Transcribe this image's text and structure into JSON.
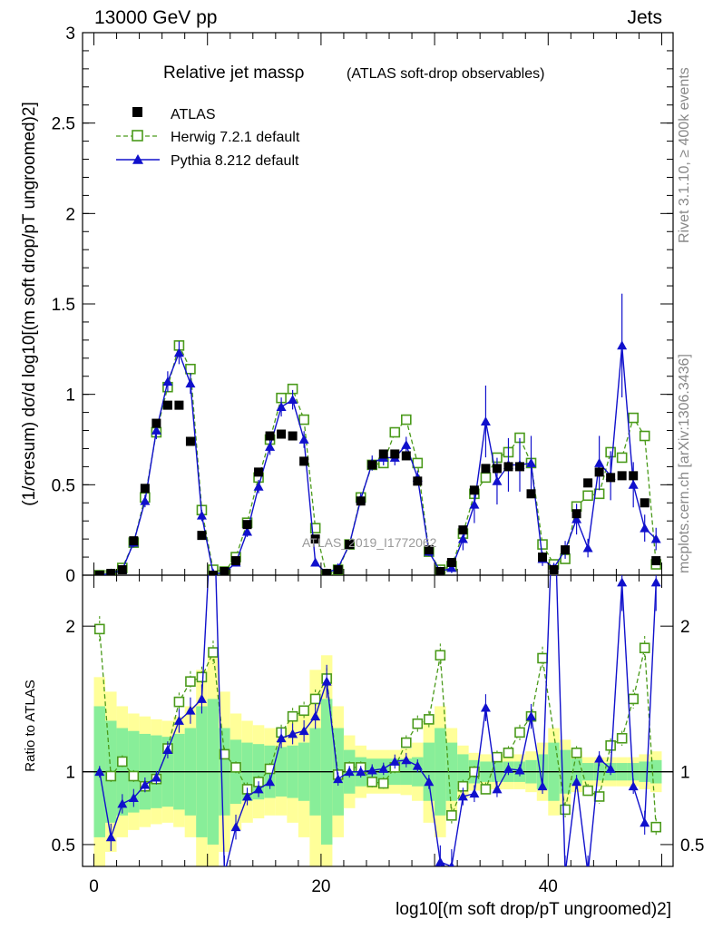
{
  "header": {
    "left": "13000 GeV pp",
    "right": "Jets"
  },
  "side": {
    "rivet": "Rivet 3.1.10, ≥ 400k events",
    "mcplots": "mcplots.cern.ch [arXiv:1306.3436]"
  },
  "watermark": "ATLAS_2019_I1772062",
  "colors": {
    "atlas": "#000000",
    "herwig": "#4a9a1a",
    "pythia": "#1010cc",
    "band_yellow": "#ffff99",
    "band_green": "#88ee99"
  },
  "chart_data": {
    "type": "line",
    "title": "Relative jet massρ",
    "subtitle": "(ATLAS soft-drop observables)",
    "ylabel_main": "(1/σresum) dσ/d log10[(m soft drop/pT ungroomed)2]",
    "ylabel_ratio": "Ratio to ATLAS",
    "xlabel": "log10[(m soft drop/pT ungroomed)2]",
    "xlim": [
      -1,
      51
    ],
    "ylim_main": [
      0,
      3
    ],
    "ylim_ratio": [
      0.35,
      2.35
    ],
    "xticks": [
      0,
      20,
      40
    ],
    "yticks_main": [
      "0",
      "0.5",
      "1",
      "1.5",
      "2",
      "2.5",
      "3"
    ],
    "yticks_ratio": [
      "0.5",
      "1",
      "2"
    ],
    "legend": [
      "ATLAS",
      "Herwig 7.2.1 default",
      "Pythia 8.212 default"
    ],
    "x": [
      0.5,
      1.5,
      2.5,
      3.5,
      4.5,
      5.5,
      6.5,
      7.5,
      8.5,
      9.5,
      10.5,
      11.5,
      12.5,
      13.5,
      14.5,
      15.5,
      16.5,
      17.5,
      18.5,
      19.5,
      20.5,
      21.5,
      22.5,
      23.5,
      24.5,
      25.5,
      26.5,
      27.5,
      28.5,
      29.5,
      30.5,
      31.5,
      32.5,
      33.5,
      34.5,
      35.5,
      36.5,
      37.5,
      38.5,
      39.5,
      40.5,
      41.5,
      42.5,
      43.5,
      44.5,
      45.5,
      46.5,
      47.5,
      48.5,
      49.5
    ],
    "series": [
      {
        "name": "ATLAS",
        "style": "square",
        "values": [
          0.0,
          0.01,
          0.03,
          0.19,
          0.48,
          0.84,
          0.94,
          0.94,
          0.74,
          0.22,
          0.0,
          0.02,
          0.08,
          0.28,
          0.57,
          0.77,
          0.78,
          0.77,
          0.63,
          0.2,
          0.01,
          0.03,
          0.17,
          0.41,
          0.61,
          0.67,
          0.67,
          0.66,
          0.52,
          0.14,
          0.02,
          0.07,
          0.25,
          0.47,
          0.59,
          0.59,
          0.6,
          0.6,
          0.45,
          0.1,
          0.03,
          0.14,
          0.34,
          0.51,
          0.57,
          0.54,
          0.55,
          0.55,
          0.4,
          0.08
        ]
      },
      {
        "name": "Herwig 7.2.1 default",
        "style": "open-square-dashed",
        "values": [
          0.0,
          0.0,
          0.04,
          0.18,
          0.43,
          0.79,
          1.04,
          1.27,
          1.14,
          0.36,
          0.03,
          0.02,
          0.1,
          0.29,
          0.54,
          0.75,
          0.98,
          1.03,
          0.86,
          0.26,
          0.0,
          0.03,
          0.17,
          0.43,
          0.61,
          0.62,
          0.79,
          0.86,
          0.62,
          0.13,
          0.03,
          0.05,
          0.23,
          0.45,
          0.54,
          0.65,
          0.68,
          0.76,
          0.62,
          0.17,
          0.06,
          0.09,
          0.38,
          0.44,
          0.45,
          0.68,
          0.65,
          0.87,
          0.77,
          0.06
        ]
      },
      {
        "name": "Pythia 8.212 default",
        "style": "filled-triangle",
        "values": [
          0.0,
          0.01,
          0.03,
          0.18,
          0.41,
          0.8,
          1.07,
          1.23,
          1.06,
          0.33,
          0.01,
          0.01,
          0.07,
          0.24,
          0.49,
          0.71,
          0.93,
          0.97,
          0.75,
          0.07,
          0.01,
          0.04,
          0.17,
          0.42,
          0.62,
          0.65,
          0.65,
          0.72,
          0.54,
          0.13,
          0.02,
          0.04,
          0.2,
          0.39,
          0.85,
          0.52,
          0.61,
          0.61,
          0.62,
          0.09,
          0.04,
          0.14,
          0.31,
          0.15,
          0.62,
          0.55,
          1.27,
          0.5,
          0.26,
          0.2
        ]
      }
    ],
    "ratio_series": [
      {
        "name": "Herwig 7.2.1 default",
        "values": [
          1.98,
          0.97,
          1.07,
          0.97,
          0.9,
          0.95,
          1.16,
          1.48,
          1.62,
          1.65,
          1.82,
          1.12,
          1.03,
          0.88,
          0.93,
          1.02,
          1.27,
          1.38,
          1.42,
          1.5,
          1.64,
          0.98,
          1.03,
          1.03,
          0.93,
          0.92,
          1.03,
          1.2,
          1.33,
          1.36,
          1.8,
          0.7,
          0.9,
          1.0,
          0.88,
          1.1,
          1.13,
          1.27,
          1.38,
          1.78,
          null,
          0.74,
          1.13,
          0.87,
          0.83,
          1.18,
          1.23,
          1.5,
          1.85,
          0.62
        ]
      },
      {
        "name": "Pythia 8.212 default",
        "values": [
          1.0,
          0.55,
          0.78,
          0.82,
          0.91,
          0.96,
          1.15,
          1.35,
          1.42,
          1.5,
          3.0,
          0.3,
          0.62,
          0.83,
          0.88,
          0.93,
          1.23,
          1.26,
          1.28,
          1.38,
          1.62,
          0.95,
          1.0,
          1.0,
          1.01,
          1.02,
          1.07,
          1.08,
          1.04,
          0.93,
          0.38,
          0.35,
          0.83,
          0.85,
          1.44,
          0.88,
          1.02,
          1.01,
          1.38,
          0.9,
          3.0,
          0.3,
          0.93,
          0.3,
          1.09,
          1.02,
          2.3,
          0.9,
          0.65,
          2.3
        ]
      }
    ],
    "ratio_band": {
      "inner": [
        0.45,
        0.35,
        0.3,
        0.28,
        0.26,
        0.25,
        0.24,
        0.26,
        0.3,
        0.45,
        0.5,
        0.3,
        0.22,
        0.2,
        0.19,
        0.18,
        0.17,
        0.18,
        0.2,
        0.3,
        0.5,
        0.3,
        0.15,
        0.1,
        0.09,
        0.09,
        0.09,
        0.09,
        0.1,
        0.2,
        0.3,
        0.2,
        0.12,
        0.08,
        0.07,
        0.07,
        0.07,
        0.07,
        0.08,
        0.12,
        0.2,
        0.15,
        0.09,
        0.06,
        0.06,
        0.06,
        0.06,
        0.06,
        0.07,
        0.08
      ],
      "outer": [
        0.65,
        0.55,
        0.45,
        0.4,
        0.38,
        0.36,
        0.35,
        0.38,
        0.45,
        0.7,
        0.8,
        0.55,
        0.4,
        0.35,
        0.32,
        0.3,
        0.3,
        0.35,
        0.45,
        0.7,
        0.8,
        0.45,
        0.25,
        0.18,
        0.15,
        0.15,
        0.15,
        0.16,
        0.2,
        0.35,
        0.45,
        0.3,
        0.18,
        0.13,
        0.12,
        0.12,
        0.12,
        0.12,
        0.14,
        0.2,
        0.3,
        0.22,
        0.14,
        0.1,
        0.1,
        0.1,
        0.1,
        0.1,
        0.12,
        0.14
      ]
    }
  }
}
